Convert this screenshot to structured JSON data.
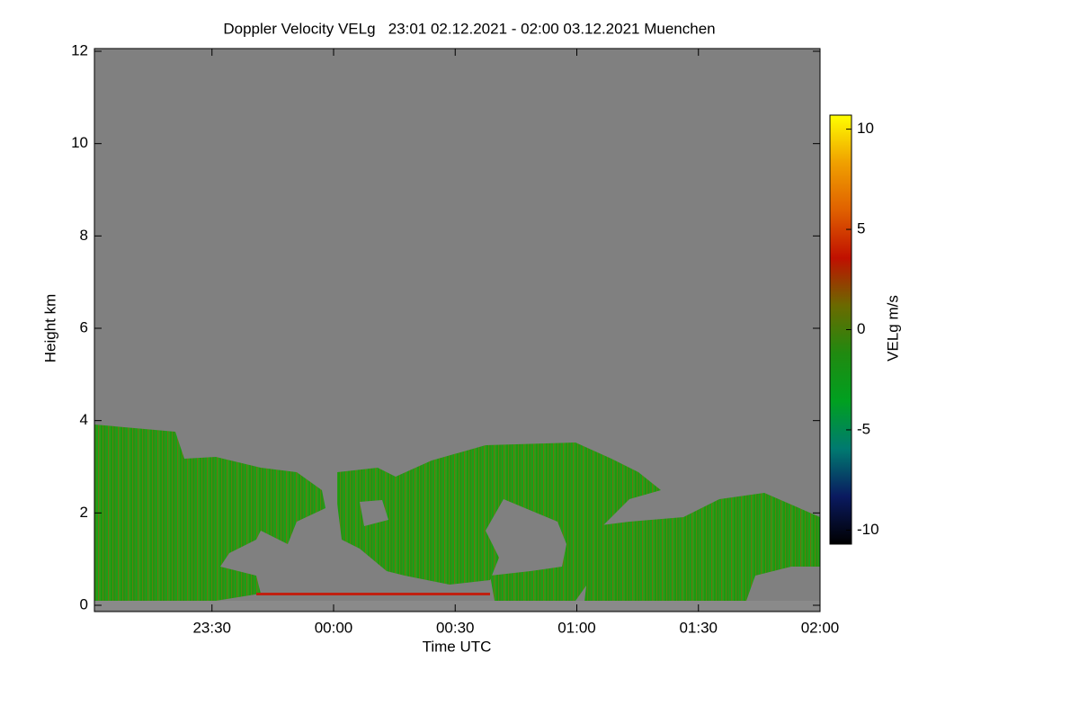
{
  "chart_data": {
    "type": "heatmap",
    "title": "Doppler Velocity VELg   23:01 02.12.2021 - 02:00 03.12.2021 Muenchen",
    "x_label": "Time UTC",
    "y_label": "Height km",
    "colorbar_label": "VELg m/s",
    "xlim": [
      1,
      180
    ],
    "xticks": [
      {
        "value": 30,
        "label": "23:30"
      },
      {
        "value": 60,
        "label": "00:00"
      },
      {
        "value": 90,
        "label": "00:30"
      },
      {
        "value": 120,
        "label": "01:00"
      },
      {
        "value": 150,
        "label": "01:30"
      },
      {
        "value": 180,
        "label": "02:00"
      }
    ],
    "ylim": [
      0,
      12
    ],
    "yticks": [
      0,
      2,
      4,
      6,
      8,
      10,
      12
    ],
    "clim": [
      -10.7,
      10.7
    ],
    "cticks": [
      -10,
      -5,
      0,
      5,
      10
    ],
    "colormap": [
      "#000000",
      "#0a1a60",
      "#007a70",
      "#00a020",
      "#208a10",
      "#6a6a00",
      "#c01000",
      "#e06000",
      "#f0a000",
      "#ffff00"
    ],
    "background": "#808080"
  }
}
